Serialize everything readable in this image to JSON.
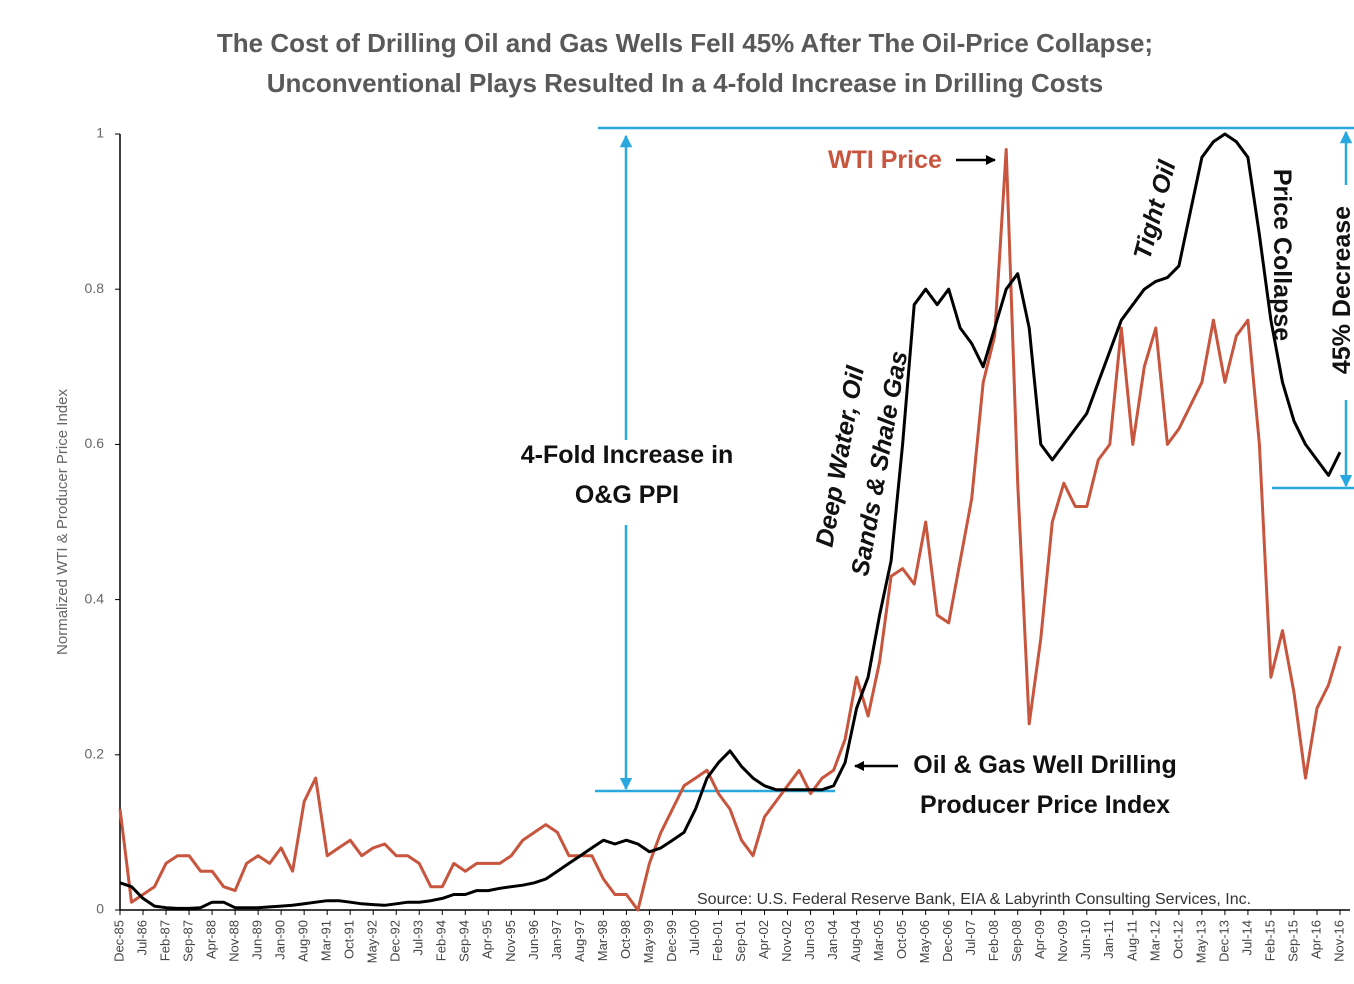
{
  "chart_data": {
    "type": "line",
    "title": "The Cost of Drilling Oil and Gas Wells Fell 45% After The Oil-Price Collapse;",
    "subtitle": "Unconventional Plays Resulted In a 4-fold Increase in Drilling Costs",
    "y_label": "Normalized WTI & Producer Price Index",
    "source": "Source: U.S. Federal Reserve Bank, EIA & Labyrinth Consulting Services, Inc.",
    "annotations": [
      "4-Fold Increase in O&G PPI",
      "Deep Water, Oil Sands & Shale Gas",
      "Tight Oil",
      "Price Collapse",
      "45% Decrease"
    ],
    "categories": [
      "Dec-85",
      null,
      "Jul-86",
      null,
      "Feb-87",
      null,
      "Sep-87",
      null,
      "Apr-88",
      null,
      "Nov-88",
      null,
      "Jun-89",
      null,
      "Jan-90",
      null,
      "Aug-90",
      null,
      "Mar-91",
      null,
      "Oct-91",
      null,
      "May-92",
      null,
      "Dec-92",
      null,
      "Jul-93",
      null,
      "Feb-94",
      null,
      "Sep-94",
      null,
      "Apr-95",
      null,
      "Nov-95",
      null,
      "Jun-96",
      null,
      "Jan-97",
      null,
      "Aug-97",
      null,
      "Mar-98",
      null,
      "Oct-98",
      null,
      "May-99",
      null,
      "Dec-99",
      null,
      "Jul-00",
      null,
      "Feb-01",
      null,
      "Sep-01",
      null,
      "Apr-02",
      null,
      "Nov-02",
      null,
      "Jun-03",
      null,
      "Jan-04",
      null,
      "Aug-04",
      null,
      "Mar-05",
      null,
      "Oct-05",
      null,
      "May-06",
      null,
      "Dec-06",
      null,
      "Jul-07",
      null,
      "Feb-08",
      null,
      "Sep-08",
      null,
      "Apr-09",
      null,
      "Nov-09",
      null,
      "Jun-10",
      null,
      "Jan-11",
      null,
      "Aug-11",
      null,
      "Mar-12",
      null,
      "Oct-12",
      null,
      "May-13",
      null,
      "Dec-13",
      null,
      "Jul-14",
      null,
      "Feb-15",
      null,
      "Sep-15",
      null,
      "Apr-16",
      null,
      "Nov-16"
    ],
    "series": [
      {
        "name": "WTI Price",
        "color": "#c8553d",
        "values": [
          0.13,
          0.01,
          0.02,
          0.03,
          0.06,
          0.07,
          0.07,
          0.05,
          0.05,
          0.03,
          0.025,
          0.06,
          0.07,
          0.06,
          0.08,
          0.05,
          0.14,
          0.17,
          0.07,
          0.08,
          0.09,
          0.07,
          0.08,
          0.085,
          0.07,
          0.07,
          0.06,
          0.03,
          0.03,
          0.06,
          0.05,
          0.06,
          0.06,
          0.06,
          0.07,
          0.09,
          0.1,
          0.11,
          0.1,
          0.07,
          0.07,
          0.07,
          0.04,
          0.02,
          0.02,
          0.0,
          0.06,
          0.1,
          0.13,
          0.16,
          0.17,
          0.18,
          0.15,
          0.13,
          0.09,
          0.07,
          0.12,
          0.14,
          0.16,
          0.18,
          0.15,
          0.17,
          0.18,
          0.22,
          0.3,
          0.25,
          0.32,
          0.43,
          0.44,
          0.42,
          0.5,
          0.38,
          0.37,
          0.45,
          0.53,
          0.68,
          0.74,
          0.98,
          0.55,
          0.24,
          0.35,
          0.5,
          0.55,
          0.52,
          0.52,
          0.58,
          0.6,
          0.75,
          0.6,
          0.7,
          0.75,
          0.6,
          0.62,
          0.65,
          0.68,
          0.76,
          0.68,
          0.74,
          0.76,
          0.6,
          0.3,
          0.36,
          0.28,
          0.17,
          0.26,
          0.29,
          0.34
        ]
      },
      {
        "name": "Oil & Gas Well Drilling Producer Price Index",
        "color": "#000000",
        "values": [
          0.035,
          0.03,
          0.015,
          0.005,
          0.003,
          0.002,
          0.002,
          0.003,
          0.01,
          0.01,
          0.003,
          0.003,
          0.003,
          0.004,
          0.005,
          0.006,
          0.008,
          0.01,
          0.012,
          0.012,
          0.01,
          0.008,
          0.007,
          0.006,
          0.008,
          0.01,
          0.01,
          0.012,
          0.015,
          0.02,
          0.02,
          0.025,
          0.025,
          0.028,
          0.03,
          0.032,
          0.035,
          0.04,
          0.05,
          0.06,
          0.07,
          0.08,
          0.09,
          0.085,
          0.09,
          0.085,
          0.075,
          0.08,
          0.09,
          0.1,
          0.13,
          0.17,
          0.19,
          0.205,
          0.185,
          0.17,
          0.16,
          0.155,
          0.155,
          0.155,
          0.155,
          0.155,
          0.16,
          0.19,
          0.26,
          0.3,
          0.38,
          0.45,
          0.6,
          0.78,
          0.8,
          0.78,
          0.8,
          0.75,
          0.73,
          0.7,
          0.75,
          0.8,
          0.82,
          0.75,
          0.6,
          0.58,
          0.6,
          0.62,
          0.64,
          0.68,
          0.72,
          0.76,
          0.78,
          0.8,
          0.81,
          0.815,
          0.83,
          0.9,
          0.97,
          0.99,
          1.0,
          0.99,
          0.97,
          0.87,
          0.76,
          0.68,
          0.63,
          0.6,
          0.58,
          0.56,
          0.59
        ]
      }
    ],
    "ylim": [
      0,
      1
    ],
    "yticks": [
      0,
      0.2,
      0.4,
      0.6,
      0.8,
      1
    ],
    "grid": false
  }
}
